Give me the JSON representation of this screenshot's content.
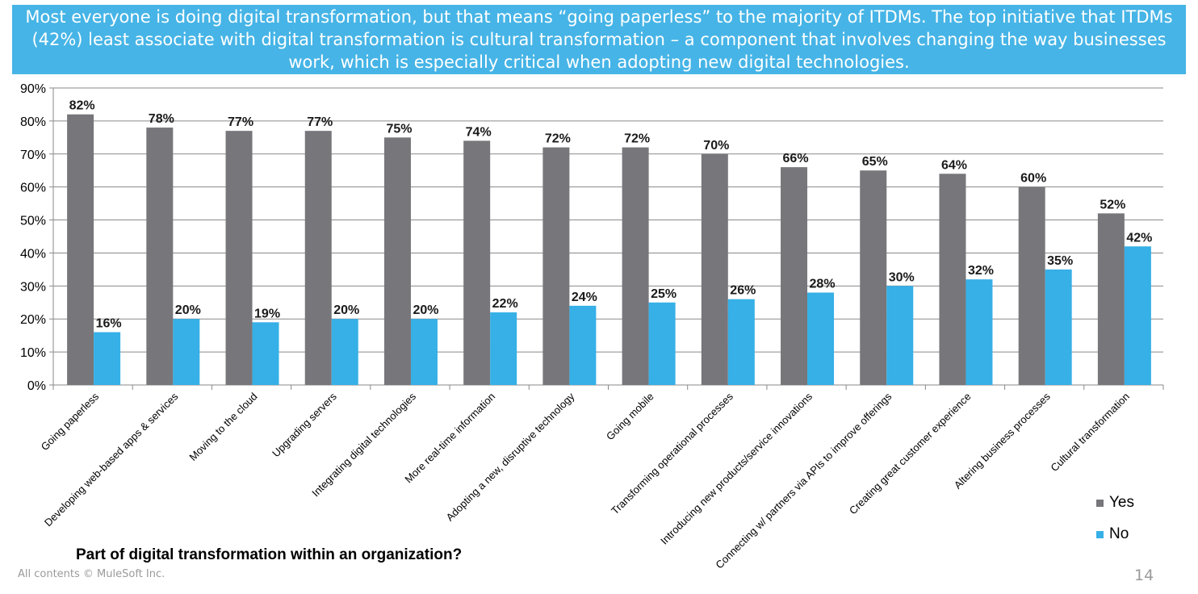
{
  "banner": {
    "text": "Most everyone is doing digital transformation, but that means “going paperless” to the majority of ITDMs. The top initiative that ITDMs (42%) least associate with digital transformation is cultural transformation – a component that involves changing the way businesses work, which is especially critical when adopting new digital technologies."
  },
  "question": "Part of digital transformation within an organization?",
  "footer": {
    "copyright": "All contents © MuleSoft Inc.",
    "page_number": "14"
  },
  "colors": {
    "yes": "#77767b",
    "no": "#36b0e6",
    "banner": "#46b4e6"
  },
  "chart_data": {
    "type": "bar",
    "categories": [
      "Going paperless",
      "Developing web-based apps & services",
      "Moving to the cloud",
      "Upgrading servers",
      "Integrating digital technologies",
      "More real-time information",
      "Adopting a new, disruptive technology",
      "Going mobile",
      "Transforming operational processes",
      "Introducing new products/service innovations",
      "Connecting w/ partners via APIs to improve offerings",
      "Creating great customer experience",
      "Altering business processes",
      "Cultural transformation"
    ],
    "series": [
      {
        "name": "Yes",
        "values": [
          82,
          78,
          77,
          77,
          75,
          74,
          72,
          72,
          70,
          66,
          65,
          64,
          60,
          52
        ]
      },
      {
        "name": "No",
        "values": [
          16,
          20,
          19,
          20,
          20,
          22,
          24,
          25,
          26,
          28,
          30,
          32,
          35,
          42
        ]
      }
    ],
    "yticks": [
      "0%",
      "10%",
      "20%",
      "30%",
      "40%",
      "50%",
      "60%",
      "70%",
      "80%",
      "90%"
    ],
    "ylim": [
      0,
      90
    ],
    "value_format": "%",
    "grid": true,
    "legend": "bottom-right"
  }
}
